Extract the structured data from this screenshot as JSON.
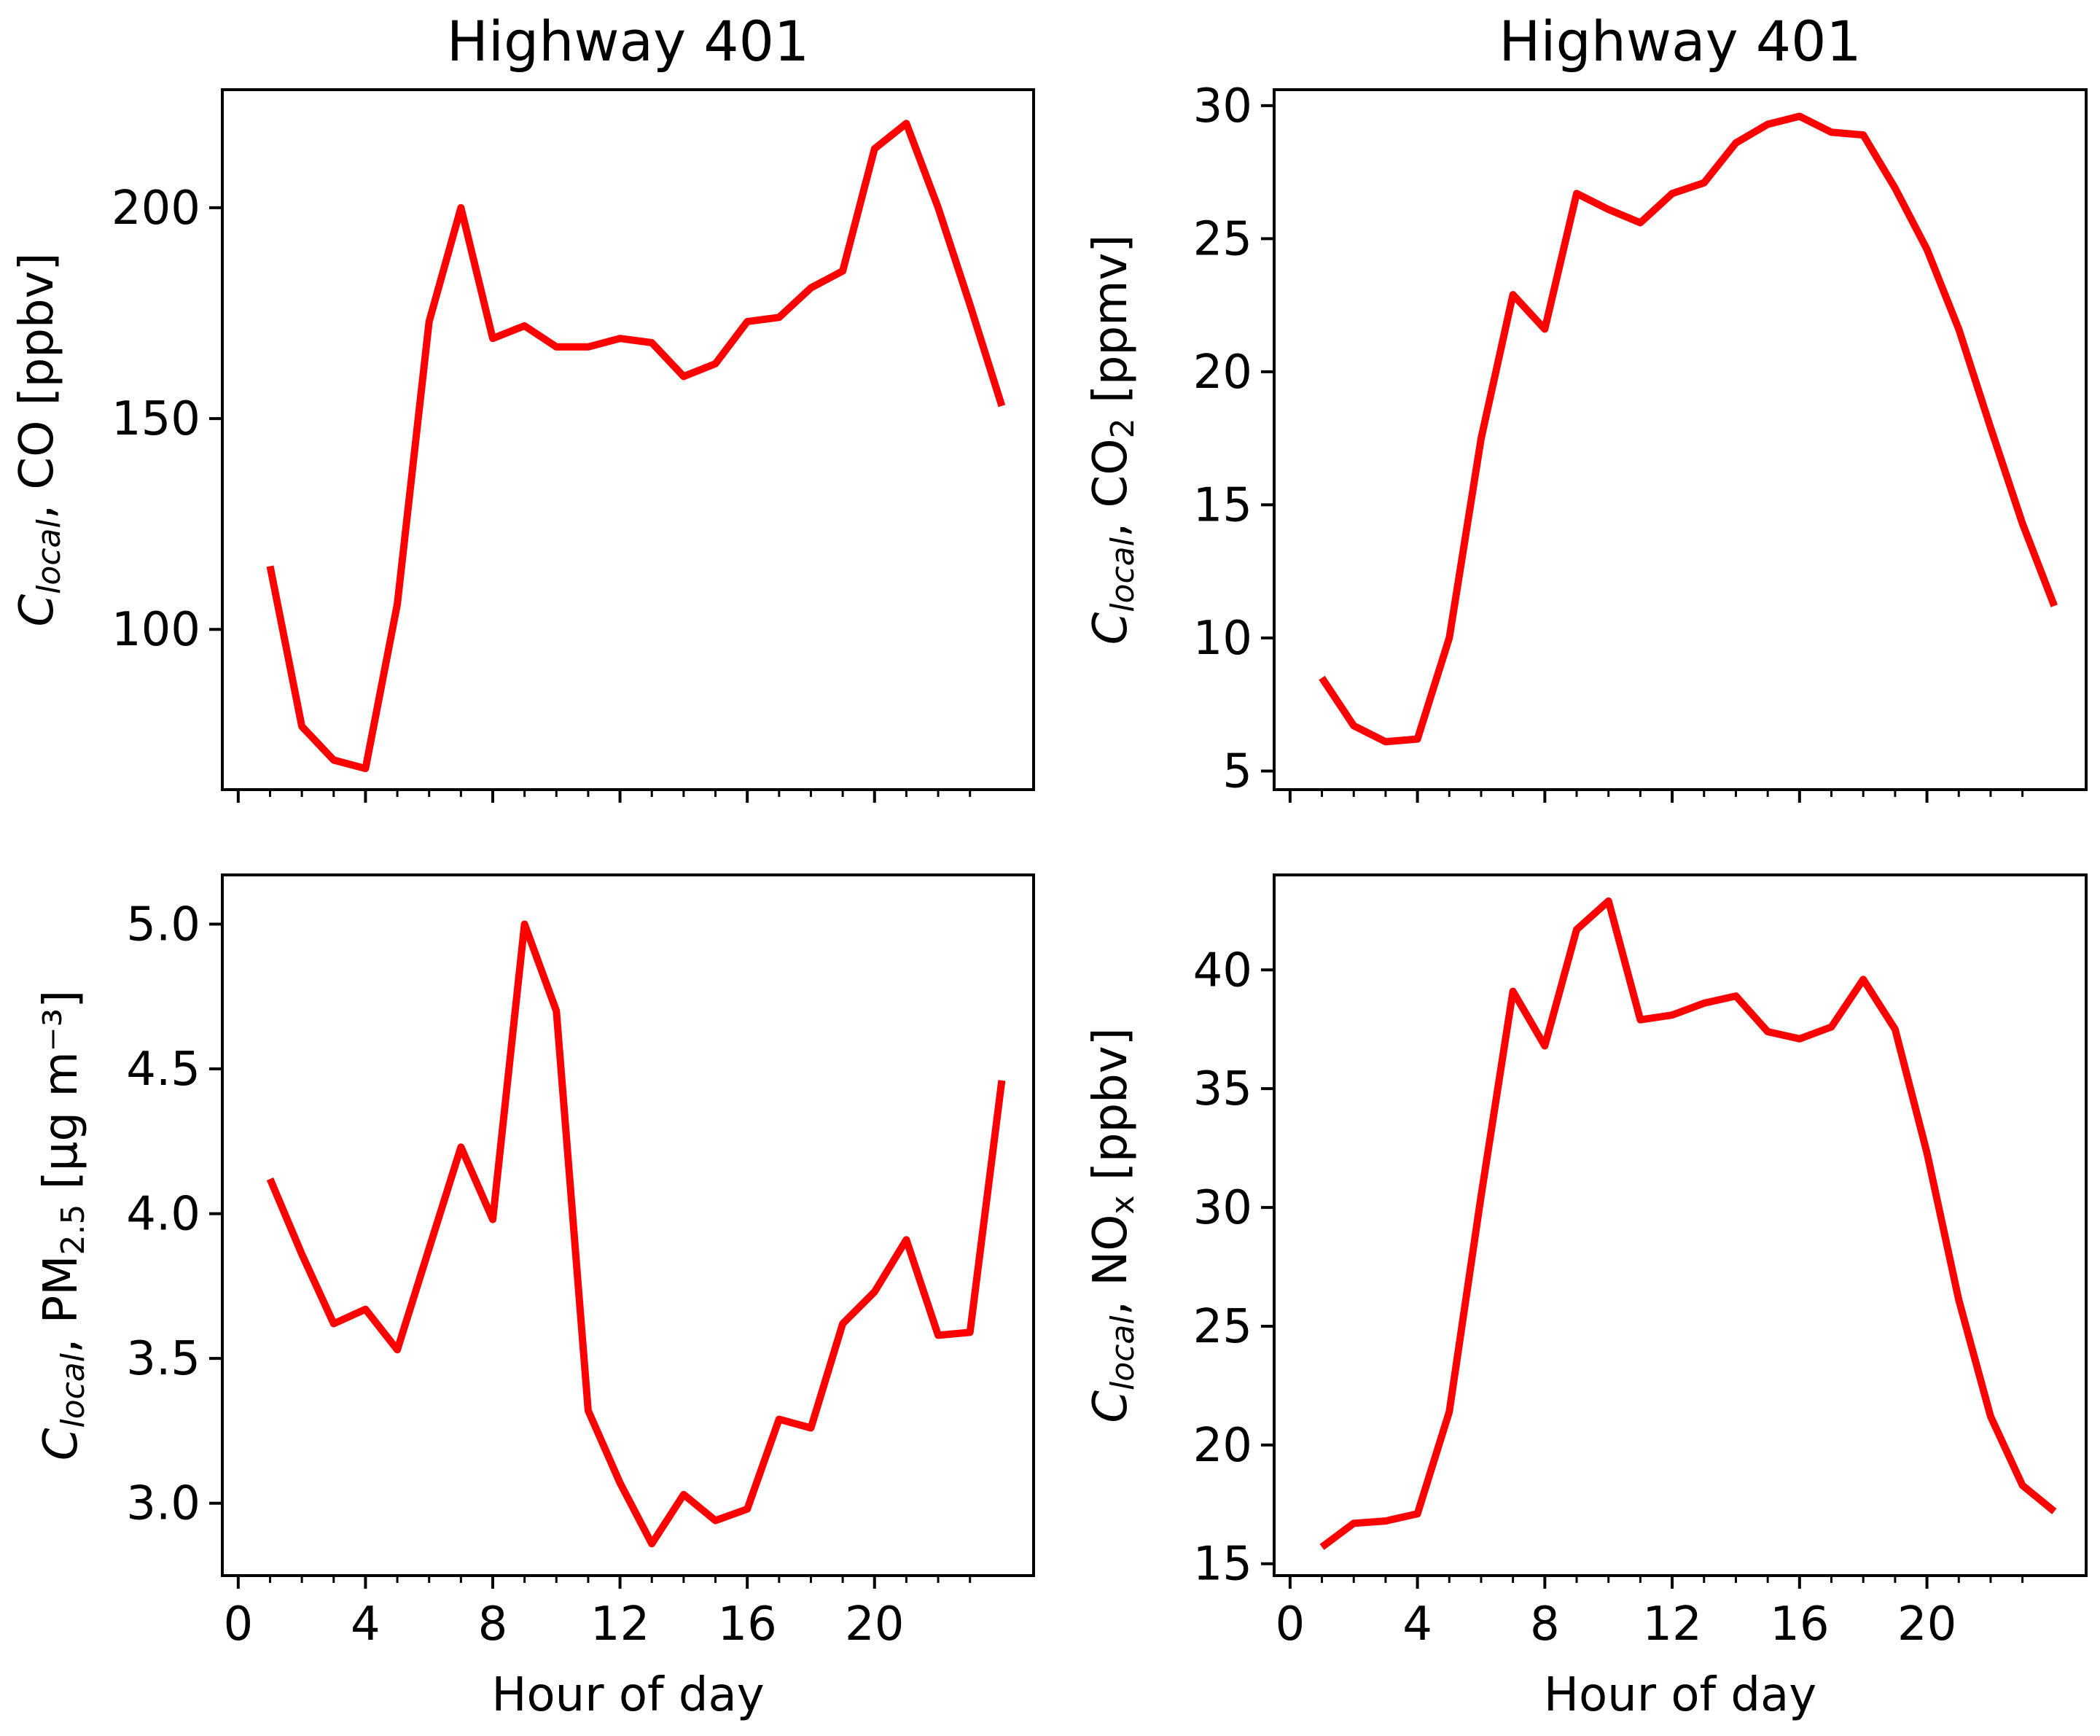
{
  "colors": {
    "series": "#ff0000",
    "axis": "#000000",
    "background": "#ffffff"
  },
  "chart_data": [
    {
      "type": "line",
      "title": "Highway 401",
      "xlabel": "",
      "ylabel": {
        "pre": "C",
        "sub_italic": "local",
        "mid": ", CO [ppbv]",
        "sub": "",
        "post": ""
      },
      "x": [
        1,
        2,
        3,
        4,
        5,
        6,
        7,
        8,
        9,
        10,
        11,
        12,
        13,
        14,
        15,
        16,
        17,
        18,
        19,
        20,
        21,
        22,
        23,
        24
      ],
      "series": [
        {
          "values": [
            115,
            77,
            69,
            67,
            106,
            173,
            200,
            169,
            172,
            167,
            167,
            169,
            168,
            160,
            163,
            173,
            174,
            181,
            185,
            214,
            220,
            200,
            177,
            153
          ]
        }
      ],
      "xlim": [
        -0.5,
        25
      ],
      "ylim": [
        62,
        228
      ],
      "xticks": [
        0,
        4,
        8,
        12,
        16,
        20
      ],
      "xtick_labels": [],
      "yticks": [
        100,
        150,
        200
      ],
      "ytick_labels": [
        "100",
        "150",
        "200"
      ],
      "grid": false
    },
    {
      "type": "line",
      "title": "Highway 401",
      "xlabel": "",
      "ylabel": {
        "pre": "C",
        "sub_italic": "local",
        "mid": ", CO",
        "sub": "2",
        "post": " [ppmv]"
      },
      "x": [
        1,
        2,
        3,
        4,
        5,
        6,
        7,
        8,
        9,
        10,
        11,
        12,
        13,
        14,
        15,
        16,
        17,
        18,
        19,
        20,
        21,
        22,
        23,
        24
      ],
      "series": [
        {
          "values": [
            8.5,
            6.7,
            6.1,
            6.2,
            10.0,
            17.5,
            22.9,
            21.6,
            26.7,
            26.1,
            25.6,
            26.7,
            27.1,
            28.6,
            29.3,
            29.6,
            29.0,
            28.9,
            26.9,
            24.6,
            21.6,
            17.9,
            14.3,
            11.2
          ]
        }
      ],
      "xlim": [
        -0.5,
        25
      ],
      "ylim": [
        4.3,
        30.6
      ],
      "xticks": [
        0,
        4,
        8,
        12,
        16,
        20
      ],
      "xtick_labels": [],
      "yticks": [
        5,
        10,
        15,
        20,
        25,
        30
      ],
      "ytick_labels": [
        "5",
        "10",
        "15",
        "20",
        "25",
        "30"
      ],
      "grid": false
    },
    {
      "type": "line",
      "title": "",
      "xlabel": "Hour of day",
      "ylabel": {
        "pre": "C",
        "sub_italic": "local",
        "mid": ", PM",
        "sub": "2.5",
        "post": " [μg m⁻³]"
      },
      "x": [
        1,
        2,
        3,
        4,
        5,
        6,
        7,
        8,
        9,
        10,
        11,
        12,
        13,
        14,
        15,
        16,
        17,
        18,
        19,
        20,
        21,
        22,
        23,
        24
      ],
      "series": [
        {
          "values": [
            4.12,
            3.86,
            3.62,
            3.67,
            3.53,
            3.88,
            4.23,
            3.98,
            5.0,
            4.7,
            3.32,
            3.07,
            2.86,
            3.03,
            2.94,
            2.98,
            3.29,
            3.26,
            3.62,
            3.73,
            3.91,
            3.58,
            3.59,
            4.46
          ]
        }
      ],
      "xlim": [
        -0.5,
        25
      ],
      "ylim": [
        2.75,
        5.17
      ],
      "xticks": [
        0,
        4,
        8,
        12,
        16,
        20
      ],
      "xtick_labels": [
        "0",
        "4",
        "8",
        "12",
        "16",
        "20"
      ],
      "yticks": [
        3.0,
        3.5,
        4.0,
        4.5,
        5.0
      ],
      "ytick_labels": [
        "3.0",
        "3.5",
        "4.0",
        "4.5",
        "5.0"
      ],
      "grid": false
    },
    {
      "type": "line",
      "title": "",
      "xlabel": "Hour of day",
      "ylabel": {
        "pre": "C",
        "sub_italic": "local",
        "mid": ", NO",
        "sub": "x",
        "post": " [ppbv]"
      },
      "x": [
        1,
        2,
        3,
        4,
        5,
        6,
        7,
        8,
        9,
        10,
        11,
        12,
        13,
        14,
        15,
        16,
        17,
        18,
        19,
        20,
        21,
        22,
        23,
        24
      ],
      "series": [
        {
          "values": [
            15.7,
            16.7,
            16.8,
            17.1,
            21.4,
            30.5,
            39.1,
            36.8,
            41.7,
            42.9,
            37.9,
            38.1,
            38.6,
            38.9,
            37.4,
            37.1,
            37.6,
            39.6,
            37.5,
            32.3,
            26.1,
            21.2,
            18.3,
            17.2
          ]
        }
      ],
      "xlim": [
        -0.5,
        25
      ],
      "ylim": [
        14.5,
        44.0
      ],
      "xticks": [
        0,
        4,
        8,
        12,
        16,
        20
      ],
      "xtick_labels": [
        "0",
        "4",
        "8",
        "12",
        "16",
        "20"
      ],
      "yticks": [
        15,
        20,
        25,
        30,
        35,
        40
      ],
      "ytick_labels": [
        "15",
        "20",
        "25",
        "30",
        "35",
        "40"
      ],
      "grid": false
    }
  ]
}
